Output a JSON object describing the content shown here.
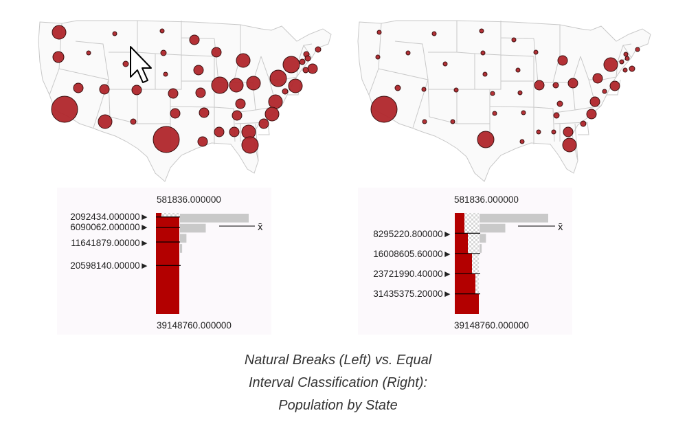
{
  "caption": {
    "line1": "Natural Breaks (Left) vs. Equal",
    "line2": "Interval Classification (Right):",
    "line3": "Population by State"
  },
  "colors": {
    "symbol_fill": "#b0262b",
    "symbol_stroke": "#3a1010",
    "state_border": "#c8c8c8",
    "histogram_bar": "#c9c9c9",
    "class_fill": "#b30000",
    "panel_bg": "#fcf9fc"
  },
  "chart_data": [
    {
      "type": "bar",
      "classification": "natural breaks",
      "min_label": "581836.000000",
      "max_label": "39148760.000000",
      "mean_label": "x̄",
      "breaks": [
        {
          "label": "2092434.000000",
          "value": 2092434
        },
        {
          "label": "6090062.000000",
          "value": 6090062
        },
        {
          "label": "11641879.00000",
          "value": 11641879
        },
        {
          "label": "20598140.00000",
          "value": 20598140
        }
      ],
      "min": 581836,
      "max": 39148760,
      "histogram_counts": [
        32,
        12,
        3,
        1,
        0,
        0,
        0,
        0,
        0,
        0
      ]
    },
    {
      "type": "bar",
      "classification": "equal interval",
      "min_label": "581836.000000",
      "max_label": "39148760.000000",
      "mean_label": "x̄",
      "breaks": [
        {
          "label": "8295220.800000",
          "value": 8295220.8
        },
        {
          "label": "16008605.60000",
          "value": 16008605.6
        },
        {
          "label": "23721990.40000",
          "value": 23721990.4
        },
        {
          "label": "31435375.20000",
          "value": 31435375.2
        }
      ],
      "min": 581836,
      "max": 39148760,
      "histogram_counts": [
        32,
        12,
        3,
        1,
        0,
        0,
        0,
        0,
        0,
        0
      ]
    }
  ]
}
